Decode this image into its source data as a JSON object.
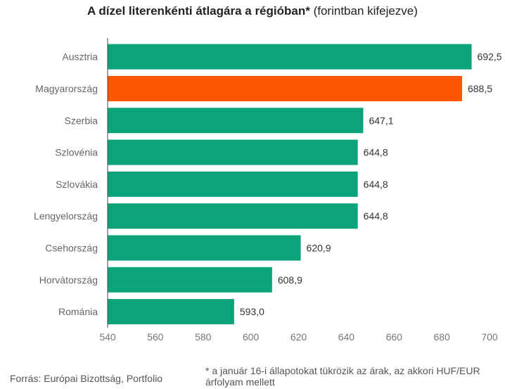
{
  "title_bold": "A dízel literenkénti átlagára a régióban*",
  "title_normal": " (forintban kifejezve)",
  "source": "Forrás: Európai Bizottság, Portfolio",
  "note": "* a január 16-i állapotokat tükrözik az árak, az akkori HUF/EUR árfolyam mellett",
  "colors": {
    "default": "#0ba37a",
    "highlight": "#fe5502",
    "axis": "#444444"
  },
  "chart_data": {
    "type": "bar",
    "orientation": "horizontal",
    "categories": [
      "Ausztria",
      "Magyarország",
      "Szerbia",
      "Szlovénia",
      "Szlovákia",
      "Lengyelország",
      "Csehország",
      "Horvátország",
      "Románia"
    ],
    "values": [
      692.5,
      688.5,
      647.1,
      644.8,
      644.8,
      644.8,
      620.9,
      608.9,
      593.0
    ],
    "value_labels": [
      "692,5",
      "688,5",
      "647,1",
      "644,8",
      "644,8",
      "644,8",
      "620,9",
      "608,9",
      "593,0"
    ],
    "highlight": "Magyarország",
    "xlim": [
      540,
      700
    ],
    "xticks": [
      540,
      560,
      580,
      600,
      620,
      640,
      660,
      680,
      700
    ],
    "grid": false,
    "legend": "none"
  }
}
